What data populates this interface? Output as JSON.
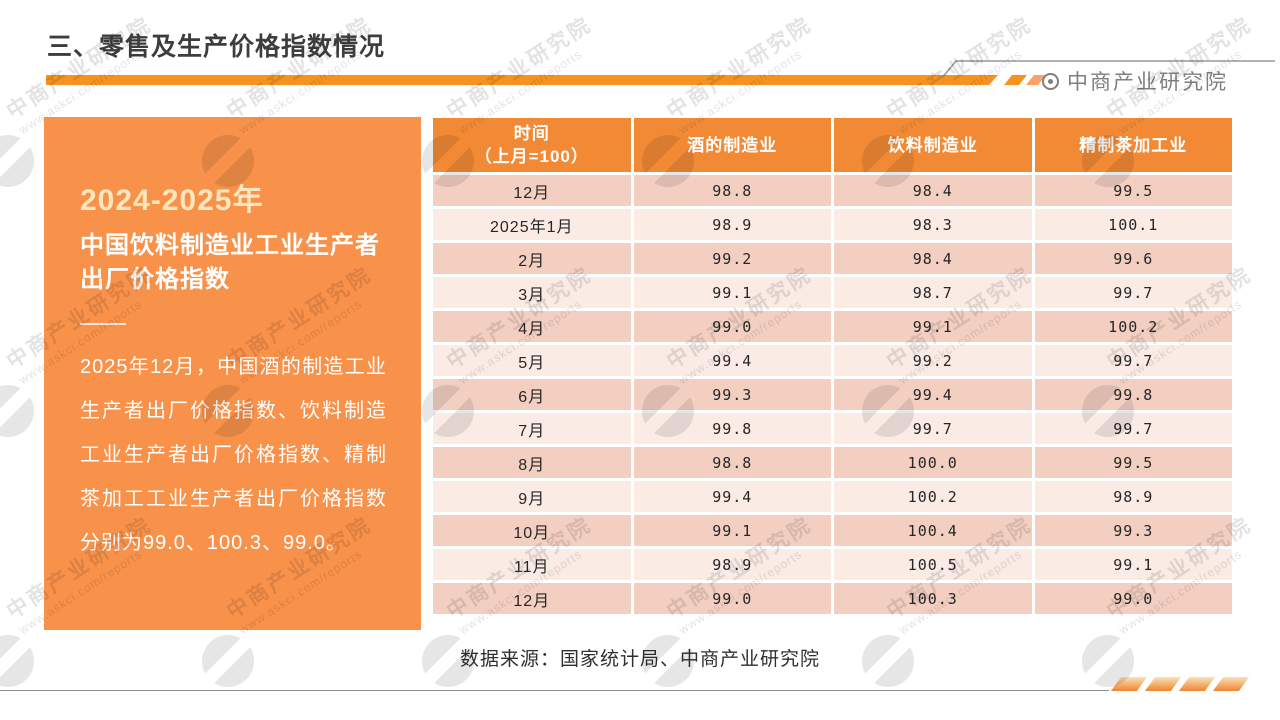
{
  "header": {
    "title": "三、零售及生产价格指数情况",
    "brand": "中商产业研究院"
  },
  "panel": {
    "period": "2024-2025年",
    "title": "中国饮料制造业工业生产者出厂价格指数",
    "description": "2025年12月，中国酒的制造工业生产者出厂价格指数、饮料制造工业生产者出厂价格指数、精制茶加工工业生产者出厂价格指数分别为99.0、100.3、99.0。"
  },
  "table": {
    "time_header": [
      "时间",
      "（上月=100）"
    ],
    "columns": [
      "酒的制造业",
      "饮料制造业",
      "精制茶加工业"
    ],
    "rows": [
      {
        "time": "12月",
        "values": [
          "98.8",
          "98.4",
          "99.5"
        ]
      },
      {
        "time": "2025年1月",
        "values": [
          "98.9",
          "98.3",
          "100.1"
        ]
      },
      {
        "time": "2月",
        "values": [
          "99.2",
          "98.4",
          "99.6"
        ]
      },
      {
        "time": "3月",
        "values": [
          "99.1",
          "98.7",
          "99.7"
        ]
      },
      {
        "time": "4月",
        "values": [
          "99.0",
          "99.1",
          "100.2"
        ]
      },
      {
        "time": "5月",
        "values": [
          "99.4",
          "99.2",
          "99.7"
        ]
      },
      {
        "time": "6月",
        "values": [
          "99.3",
          "99.4",
          "99.8"
        ]
      },
      {
        "time": "7月",
        "values": [
          "99.8",
          "99.7",
          "99.7"
        ]
      },
      {
        "time": "8月",
        "values": [
          "98.8",
          "100.0",
          "99.5"
        ]
      },
      {
        "time": "9月",
        "values": [
          "99.4",
          "100.2",
          "98.9"
        ]
      },
      {
        "time": "10月",
        "values": [
          "99.1",
          "100.4",
          "99.3"
        ]
      },
      {
        "time": "11月",
        "values": [
          "98.9",
          "100.5",
          "99.1"
        ]
      },
      {
        "time": "12月",
        "values": [
          "99.0",
          "100.3",
          "99.0"
        ]
      }
    ]
  },
  "footer": {
    "source": "数据来源：国家统计局、中商产业研究院"
  },
  "watermark": {
    "line1": "中商产业研究院",
    "line2": "www.askci.com/reports"
  },
  "colors": {
    "accent-orange": "#F6921F",
    "panel-orange": "#F8914A",
    "header-orange": "#F28A35",
    "row-dark": "#F3CFC2",
    "row-light": "#FBEBE5",
    "cream": "#FBE7BD",
    "title-gray": "#3D3D3D",
    "brand-gray": "#7F7F7F",
    "line-gray": "#999999",
    "chip-light": "#F9A169",
    "chip-top": "#FBE2B8",
    "chip-bottom": "#EF8430",
    "text-dark": "#262626"
  },
  "chart_data": {
    "type": "table",
    "title": "2024-2025年中国饮料制造业工业生产者出厂价格指数（上月=100）",
    "categories": [
      "12月",
      "2025年1月",
      "2月",
      "3月",
      "4月",
      "5月",
      "6月",
      "7月",
      "8月",
      "9月",
      "10月",
      "11月",
      "12月"
    ],
    "series": [
      {
        "name": "酒的制造业",
        "values": [
          98.8,
          98.9,
          99.2,
          99.1,
          99.0,
          99.4,
          99.3,
          99.8,
          98.8,
          99.4,
          99.1,
          98.9,
          99.0
        ]
      },
      {
        "name": "饮料制造业",
        "values": [
          98.4,
          98.3,
          98.4,
          98.7,
          99.1,
          99.2,
          99.4,
          99.7,
          100.0,
          100.2,
          100.4,
          100.5,
          100.3
        ]
      },
      {
        "name": "精制茶加工业",
        "values": [
          99.5,
          100.1,
          99.6,
          99.7,
          100.2,
          99.7,
          99.8,
          99.7,
          99.5,
          98.9,
          99.3,
          99.1,
          99.0
        ]
      }
    ],
    "source": "国家统计局、中商产业研究院"
  }
}
